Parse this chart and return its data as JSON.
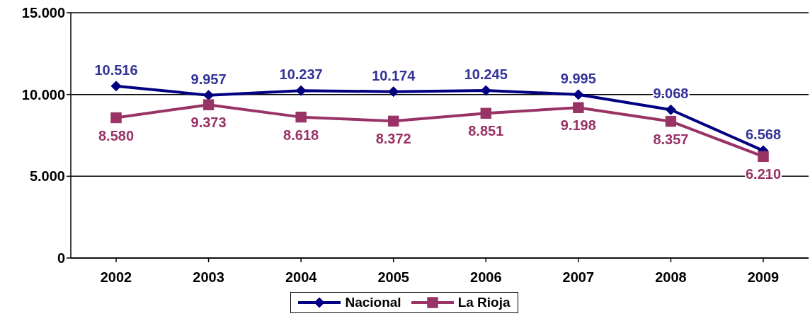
{
  "chart_data": {
    "type": "line",
    "categories": [
      "2002",
      "2003",
      "2004",
      "2005",
      "2006",
      "2007",
      "2008",
      "2009"
    ],
    "series": [
      {
        "name": "Nacional",
        "color": "#000080",
        "marker": "diamond",
        "values": [
          10516,
          9957,
          10237,
          10174,
          10245,
          9995,
          9068,
          6568
        ],
        "value_labels": [
          "10.516",
          "9.957",
          "10.237",
          "10.174",
          "10.245",
          "9.995",
          "9.068",
          "6.568"
        ]
      },
      {
        "name": "La Rioja",
        "color": "#993366",
        "marker": "square",
        "values": [
          8580,
          9373,
          8618,
          8372,
          8851,
          9198,
          8357,
          6210
        ],
        "value_labels": [
          "8.580",
          "9.373",
          "8.618",
          "8.372",
          "8.851",
          "9.198",
          "8.357",
          "6.210"
        ]
      }
    ],
    "ylim": [
      0,
      15000
    ],
    "yticks": [
      0,
      {
        "value": 5000,
        "label": "5.000"
      },
      {
        "value": 10000,
        "label": "10.000"
      },
      {
        "value": 15000,
        "label": "15.000"
      }
    ],
    "grid": "y",
    "legend": "bottom"
  }
}
